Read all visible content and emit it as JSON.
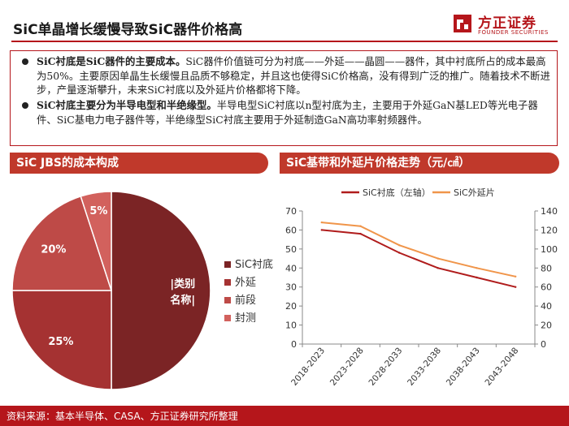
{
  "header": {
    "title": "SiC单晶增长缓慢导致SiC器件价格高",
    "logo_cn": "方正证券",
    "logo_en": "FOUNDER SECURITIES"
  },
  "summary": {
    "bullet1_bold": "SiC衬底是SiC器件的主要成本。",
    "bullet1_text": "SiC器件价值链可分为衬底——外延——晶圆——器件，其中衬底所占的成本最高为50%。主要原因单晶生长缓慢且品质不够稳定，并且这也使得SiC价格高，没有得到广泛的推广。随着技术不断进步，产量逐渐攀升，未来SiC衬底以及外延片价格都将下降。",
    "bullet2_bold": "SiC衬底主要分为半导电型和半绝缘型。",
    "bullet2_text": "半导电型SiC衬底以n型衬底为主，主要用于外延GaN基LED等光电子器件、SiC基电力电子器件等，半绝缘型SiC衬底主要用于外延制造GaN高功率射频器件。"
  },
  "panels": {
    "left_title": "SiC JBS的成本构成",
    "right_title": "SiC基带和外延片价格走势（元/㎠）"
  },
  "colors": {
    "brand": "#b5161b",
    "panel": "#c0392b",
    "line1": "#b01c1c",
    "line2": "#f0954a"
  },
  "chart_data": [
    {
      "type": "pie",
      "title": "SiC JBS的成本构成",
      "slices": [
        {
          "name": "SiC衬底",
          "value": 50,
          "label": "|类别名称|",
          "color": "#7b2425"
        },
        {
          "name": "外延",
          "value": 25,
          "label": "25%",
          "color": "#a53232"
        },
        {
          "name": "前段",
          "value": 20,
          "label": "20%",
          "color": "#be4a47"
        },
        {
          "name": "封测",
          "value": 5,
          "label": "5%",
          "color": "#d2615d"
        }
      ],
      "legend_position": "right"
    },
    {
      "type": "line",
      "title": "SiC基带和外延片价格走势（元/㎠）",
      "categories": [
        "2018-2023",
        "2023-2028",
        "2028-2033",
        "2033-2038",
        "2038-2043",
        "2043-2048"
      ],
      "series": [
        {
          "name": "SiC衬底（左轴）",
          "axis": "left",
          "color": "#b01c1c",
          "values": [
            60,
            58,
            48,
            40,
            35,
            30
          ]
        },
        {
          "name": "SiC外延片",
          "axis": "right",
          "color": "#f0954a",
          "values": [
            128,
            124,
            104,
            90,
            80,
            71
          ]
        }
      ],
      "ylim_left": [
        0,
        70
      ],
      "yticks_left": [
        "0",
        "10",
        "20",
        "30",
        "40",
        "50",
        "60",
        "70"
      ],
      "ylim_right": [
        0,
        140
      ],
      "yticks_right": [
        "0",
        "20",
        "40",
        "60",
        "80",
        "100",
        "120",
        "140"
      ],
      "legend_position": "top",
      "grid": false
    }
  ],
  "footer": {
    "source": "资料来源：基本半导体、CASA、方正证券研究所整理"
  }
}
